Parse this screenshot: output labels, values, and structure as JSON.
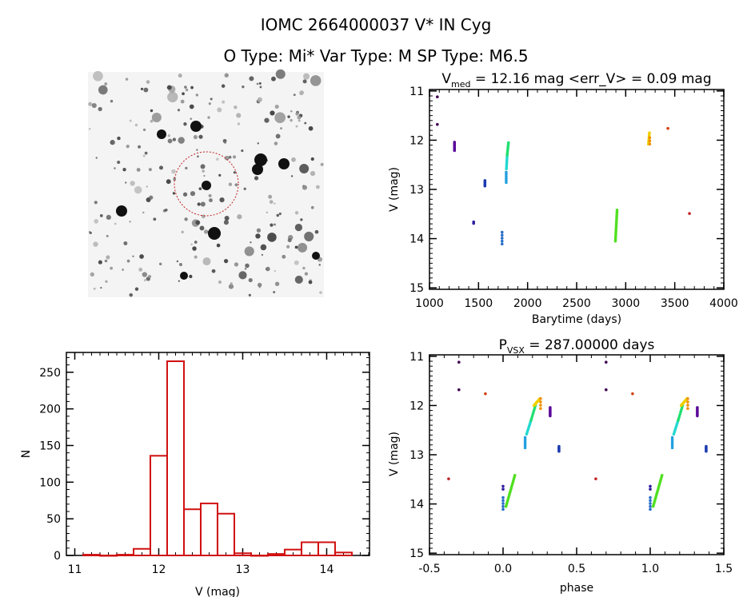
{
  "header": {
    "line1": "IOMC 2664000037    V* IN Cyg",
    "line2": "O Type: Mi*  Var Type: M   SP Type: M6.5"
  },
  "colors": {
    "hist": "#d01010",
    "axis": "#000000"
  },
  "chart_data": [
    {
      "id": "lightcurve",
      "type": "scatter",
      "title_main": "V",
      "title_sub": "med",
      "title_rest": " = 12.16 mag <err_V> = 0.09 mag",
      "xlabel": "Barytime (days)",
      "ylabel": "V (mag)",
      "xlim": [
        1000,
        4000
      ],
      "ylim": [
        15.03,
        10.97
      ],
      "xticks": [
        1000,
        1500,
        2000,
        2500,
        3000,
        3500,
        4000
      ],
      "xminor": 100,
      "yticks": [
        11,
        12,
        13,
        14,
        15
      ],
      "yminor": 0.1,
      "clusters": [
        {
          "x": [
            1080,
            1080
          ],
          "y": [
            11.12,
            11.12
          ],
          "n": 1,
          "color": "#400050"
        },
        {
          "x": [
            1080,
            1080
          ],
          "y": [
            11.68,
            11.68
          ],
          "n": 1,
          "color": "#400050"
        },
        {
          "x": [
            1255,
            1255
          ],
          "y": [
            12.04,
            12.21
          ],
          "n": 8,
          "color": "#5a0a9a"
        },
        {
          "x": [
            1450,
            1450
          ],
          "y": [
            13.66,
            13.69
          ],
          "n": 2,
          "color": "#3020a0"
        },
        {
          "x": [
            1565,
            1565
          ],
          "y": [
            12.82,
            12.93
          ],
          "n": 5,
          "color": "#1a3ab0"
        },
        {
          "x": [
            1740,
            1740
          ],
          "y": [
            13.87,
            14.11
          ],
          "n": 5,
          "color": "#2a70c8"
        },
        {
          "x": [
            1782,
            1782
          ],
          "y": [
            12.65,
            12.86
          ],
          "n": 6,
          "color": "#20a0e0"
        },
        {
          "x": [
            1784,
            1792
          ],
          "y": [
            12.58,
            12.3
          ],
          "n": 8,
          "color": "#20d8d0"
        },
        {
          "x": [
            1792,
            1805
          ],
          "y": [
            12.3,
            12.05
          ],
          "n": 8,
          "color": "#20e070"
        },
        {
          "x": [
            2895,
            2912
          ],
          "y": [
            14.05,
            13.42
          ],
          "n": 18,
          "color": "#50e020"
        },
        {
          "x": [
            3232,
            3242
          ],
          "y": [
            12.08,
            11.85
          ],
          "n": 8,
          "color": "#f0d000"
        },
        {
          "x": [
            3245,
            3245
          ],
          "y": [
            11.95,
            12.08
          ],
          "n": 3,
          "color": "#f09000"
        },
        {
          "x": [
            3430,
            3430
          ],
          "y": [
            11.76,
            11.76
          ],
          "n": 1,
          "color": "#d04010"
        },
        {
          "x": [
            3650,
            3650
          ],
          "y": [
            13.49,
            13.49
          ],
          "n": 1,
          "color": "#c02020"
        }
      ]
    },
    {
      "id": "phase",
      "type": "scatter",
      "title_main": "P",
      "title_sub": "VSX",
      "title_rest": " = 287.00000 days",
      "xlabel": "phase",
      "ylabel": "V (mag)",
      "xlim": [
        -0.5,
        1.5
      ],
      "ylim": [
        15.03,
        10.97
      ],
      "xticks": [
        "-0.5",
        "0.0",
        "0.5",
        "1.0",
        "1.5"
      ],
      "xminor": 0.1,
      "yticks": [
        11,
        12,
        13,
        14,
        15
      ],
      "yminor": 0.1,
      "repeat_period": 1,
      "clusters": [
        {
          "x": [
            -0.3,
            -0.3
          ],
          "y": [
            11.12,
            11.12
          ],
          "n": 1,
          "color": "#400050"
        },
        {
          "x": [
            -0.3,
            -0.3
          ],
          "y": [
            11.68,
            11.68
          ],
          "n": 1,
          "color": "#400050"
        },
        {
          "x": [
            -0.12,
            -0.12
          ],
          "y": [
            11.76,
            11.76
          ],
          "n": 1,
          "color": "#d04010"
        },
        {
          "x": [
            -0.37,
            -0.37
          ],
          "y": [
            13.49,
            13.49
          ],
          "n": 1,
          "color": "#c02020"
        },
        {
          "x": [
            0.0,
            0.0
          ],
          "y": [
            13.64,
            13.7
          ],
          "n": 2,
          "color": "#3020a0"
        },
        {
          "x": [
            0.0,
            0.0
          ],
          "y": [
            13.87,
            14.11
          ],
          "n": 5,
          "color": "#2a70c8"
        },
        {
          "x": [
            0.02,
            0.08
          ],
          "y": [
            14.05,
            13.42
          ],
          "n": 18,
          "color": "#50e020"
        },
        {
          "x": [
            0.15,
            0.15
          ],
          "y": [
            12.65,
            12.86
          ],
          "n": 6,
          "color": "#20a0e0"
        },
        {
          "x": [
            0.16,
            0.19
          ],
          "y": [
            12.58,
            12.3
          ],
          "n": 8,
          "color": "#20d8d0"
        },
        {
          "x": [
            0.19,
            0.22
          ],
          "y": [
            12.3,
            12.0
          ],
          "n": 8,
          "color": "#20e070"
        },
        {
          "x": [
            0.21,
            0.25
          ],
          "y": [
            12.0,
            11.86
          ],
          "n": 10,
          "color": "#f0d000"
        },
        {
          "x": [
            0.255,
            0.255
          ],
          "y": [
            11.86,
            12.06
          ],
          "n": 4,
          "color": "#f09000"
        },
        {
          "x": [
            0.32,
            0.32
          ],
          "y": [
            12.04,
            12.21
          ],
          "n": 8,
          "color": "#5a0a9a"
        },
        {
          "x": [
            0.38,
            0.38
          ],
          "y": [
            12.83,
            12.93
          ],
          "n": 5,
          "color": "#1a3ab0"
        }
      ]
    },
    {
      "id": "histogram",
      "type": "bar",
      "xlabel": "V (mag)",
      "ylabel": "N",
      "xlim": [
        10.9,
        14.51
      ],
      "ylim": [
        0,
        277
      ],
      "xticks": [
        11,
        12,
        13,
        14
      ],
      "xminor": 0.1,
      "yticks": [
        0,
        50,
        100,
        150,
        200,
        250
      ],
      "yminor": 10,
      "bin_width": 0.2,
      "bin_centers": [
        11.2,
        11.4,
        11.6,
        11.8,
        12.0,
        12.2,
        12.4,
        12.6,
        12.8,
        13.0,
        13.2,
        13.4,
        13.6,
        13.8,
        14.0,
        14.2
      ],
      "counts": [
        1,
        0,
        1,
        9,
        136,
        265,
        63,
        71,
        57,
        3,
        0,
        2,
        8,
        18,
        18,
        4
      ]
    }
  ],
  "sky_image": {
    "circle_color": "#c02020"
  }
}
